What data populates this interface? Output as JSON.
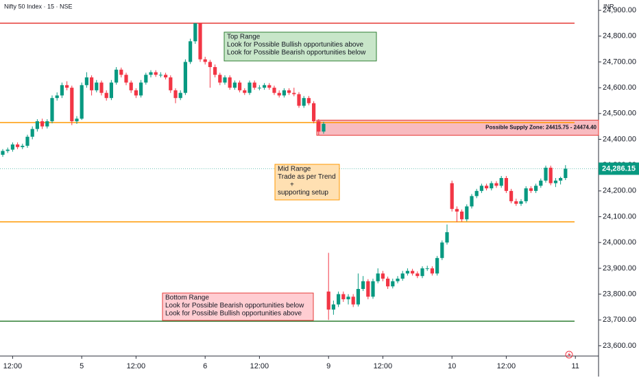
{
  "chart_data": {
    "type": "candlestick",
    "title": "Nifty 50 Index · 15 · NSE",
    "currency": "INR",
    "up_color": "#089981",
    "down_color": "#f23645",
    "ylim": [
      23560,
      24940
    ],
    "yticks": [
      {
        "value": 23600,
        "label": "23,600.00"
      },
      {
        "value": 23700,
        "label": "23,700.00"
      },
      {
        "value": 23800,
        "label": "23,800.00"
      },
      {
        "value": 23900,
        "label": "23,900.00"
      },
      {
        "value": 24000,
        "label": "24,000.00"
      },
      {
        "value": 24100,
        "label": "24,100.00"
      },
      {
        "value": 24200,
        "label": "24,200.00"
      },
      {
        "value": 24300,
        "label": "24,300.00"
      },
      {
        "value": 24400,
        "label": "24,400.00"
      },
      {
        "value": 24500,
        "label": "24,500.00"
      },
      {
        "value": 24600,
        "label": "24,600.00"
      },
      {
        "value": 24700,
        "label": "24,700.00"
      },
      {
        "value": 24800,
        "label": "24,800.00"
      },
      {
        "value": 24900,
        "label": "24,900.00"
      }
    ],
    "xticks": [
      {
        "value": 2,
        "label": "12:00"
      },
      {
        "value": 16,
        "label": "5"
      },
      {
        "value": 27,
        "label": "12:00"
      },
      {
        "value": 41,
        "label": "6"
      },
      {
        "value": 52,
        "label": "12:00"
      },
      {
        "value": 66,
        "label": "9"
      },
      {
        "value": 77,
        "label": "12:00"
      },
      {
        "value": 91,
        "label": "10"
      },
      {
        "value": 102,
        "label": "12:00"
      },
      {
        "value": 116,
        "label": "11"
      }
    ],
    "ohlc": [
      [
        24340,
        24362,
        24332,
        24355
      ],
      [
        24355,
        24368,
        24347,
        24360
      ],
      [
        24360,
        24388,
        24352,
        24380
      ],
      [
        24380,
        24388,
        24362,
        24370
      ],
      [
        24370,
        24383,
        24362,
        24375
      ],
      [
        24375,
        24418,
        24367,
        24410
      ],
      [
        24410,
        24450,
        24400,
        24440
      ],
      [
        24440,
        24478,
        24430,
        24470
      ],
      [
        24470,
        24480,
        24440,
        24450
      ],
      [
        24450,
        24478,
        24442,
        24470
      ],
      [
        24470,
        24570,
        24462,
        24560
      ],
      [
        24560,
        24582,
        24550,
        24570
      ],
      [
        24570,
        24620,
        24560,
        24610
      ],
      [
        24610,
        24625,
        24590,
        24600
      ],
      [
        24600,
        24608,
        24455,
        24470
      ],
      [
        24470,
        24490,
        24460,
        24480
      ],
      [
        24480,
        24620,
        24475,
        24610
      ],
      [
        24610,
        24660,
        24600,
        24640
      ],
      [
        24640,
        24648,
        24570,
        24590
      ],
      [
        24590,
        24630,
        24582,
        24620
      ],
      [
        24620,
        24628,
        24570,
        24580
      ],
      [
        24580,
        24590,
        24550,
        24560
      ],
      [
        24560,
        24630,
        24552,
        24620
      ],
      [
        24620,
        24680,
        24612,
        24670
      ],
      [
        24670,
        24678,
        24640,
        24650
      ],
      [
        24650,
        24658,
        24610,
        24620
      ],
      [
        24620,
        24628,
        24580,
        24590
      ],
      [
        24590,
        24598,
        24560,
        24570
      ],
      [
        24570,
        24630,
        24562,
        24620
      ],
      [
        24620,
        24658,
        24612,
        24650
      ],
      [
        24650,
        24668,
        24640,
        24660
      ],
      [
        24660,
        24668,
        24642,
        24650
      ],
      [
        24650,
        24660,
        24640,
        24650
      ],
      [
        24650,
        24658,
        24632,
        24640
      ],
      [
        24640,
        24648,
        24580,
        24590
      ],
      [
        24590,
        24598,
        24540,
        24560
      ],
      [
        24560,
        24590,
        24552,
        24580
      ],
      [
        24580,
        24710,
        24572,
        24700
      ],
      [
        24700,
        24790,
        24692,
        24780
      ],
      [
        24780,
        24850,
        24770,
        24850
      ],
      [
        24850,
        24850,
        24700,
        24710
      ],
      [
        24710,
        24720,
        24690,
        24700
      ],
      [
        24700,
        24708,
        24600,
        24680
      ],
      [
        24680,
        24690,
        24640,
        24650
      ],
      [
        24650,
        24658,
        24610,
        24620
      ],
      [
        24620,
        24648,
        24612,
        24640
      ],
      [
        24640,
        24648,
        24592,
        24600
      ],
      [
        24600,
        24628,
        24592,
        24620
      ],
      [
        24620,
        24628,
        24582,
        24590
      ],
      [
        24590,
        24598,
        24572,
        24580
      ],
      [
        24580,
        24628,
        24572,
        24620
      ],
      [
        24620,
        24628,
        24592,
        24600
      ],
      [
        24600,
        24610,
        24590,
        24600
      ],
      [
        24600,
        24618,
        24592,
        24610
      ],
      [
        24610,
        24618,
        24592,
        24600
      ],
      [
        24600,
        24608,
        24572,
        24580
      ],
      [
        24580,
        24590,
        24562,
        24570
      ],
      [
        24570,
        24598,
        24562,
        24590
      ],
      [
        24590,
        24598,
        24572,
        24580
      ],
      [
        24580,
        24600,
        24567,
        24575
      ],
      [
        24575,
        24583,
        24522,
        24530
      ],
      [
        24530,
        24568,
        24522,
        24560
      ],
      [
        24560,
        24568,
        24532,
        24540
      ],
      [
        24540,
        24548,
        24462,
        24470
      ],
      [
        24470,
        24478,
        24415,
        24430
      ],
      [
        24430,
        24468,
        24422,
        24460
      ],
      [
        23810,
        23960,
        23700,
        23740
      ],
      [
        23740,
        23775,
        23720,
        23760
      ],
      [
        23760,
        23810,
        23750,
        23800
      ],
      [
        23800,
        23810,
        23770,
        23780
      ],
      [
        23780,
        23800,
        23760,
        23790
      ],
      [
        23790,
        23800,
        23750,
        23760
      ],
      [
        23760,
        23880,
        23752,
        23820
      ],
      [
        23820,
        23870,
        23812,
        23850
      ],
      [
        23850,
        23858,
        23780,
        23790
      ],
      [
        23790,
        23860,
        23782,
        23850
      ],
      [
        23850,
        23900,
        23842,
        23880
      ],
      [
        23880,
        23890,
        23850,
        23860
      ],
      [
        23860,
        23868,
        23820,
        23830
      ],
      [
        23830,
        23860,
        23822,
        23850
      ],
      [
        23850,
        23870,
        23842,
        23860
      ],
      [
        23860,
        23890,
        23852,
        23880
      ],
      [
        23880,
        23900,
        23872,
        23890
      ],
      [
        23890,
        23898,
        23872,
        23880
      ],
      [
        23880,
        23888,
        23862,
        23870
      ],
      [
        23870,
        23908,
        23862,
        23900
      ],
      [
        23900,
        23910,
        23890,
        23900
      ],
      [
        23900,
        23908,
        23872,
        23880
      ],
      [
        23880,
        23948,
        23872,
        23940
      ],
      [
        23940,
        24008,
        23932,
        24000
      ],
      [
        24000,
        24070,
        23992,
        24040
      ],
      [
        24230,
        24240,
        24120,
        24130
      ],
      [
        24130,
        24140,
        24080,
        24120
      ],
      [
        24120,
        24128,
        24080,
        24090
      ],
      [
        24090,
        24148,
        24082,
        24140
      ],
      [
        24140,
        24188,
        24132,
        24180
      ],
      [
        24180,
        24208,
        24172,
        24200
      ],
      [
        24200,
        24228,
        24192,
        24220
      ],
      [
        24220,
        24228,
        24202,
        24210
      ],
      [
        24210,
        24238,
        24202,
        24230
      ],
      [
        24230,
        24238,
        24212,
        24220
      ],
      [
        24220,
        24258,
        24212,
        24250
      ],
      [
        24250,
        24258,
        24192,
        24200
      ],
      [
        24200,
        24208,
        24152,
        24160
      ],
      [
        24160,
        24170,
        24142,
        24150
      ],
      [
        24150,
        24168,
        24142,
        24160
      ],
      [
        24160,
        24218,
        24152,
        24210
      ],
      [
        24210,
        24218,
        24192,
        24200
      ],
      [
        24200,
        24228,
        24192,
        24220
      ],
      [
        24220,
        24248,
        24212,
        24240
      ],
      [
        24240,
        24298,
        24232,
        24290
      ],
      [
        24290,
        24298,
        24222,
        24230
      ],
      [
        24230,
        24250,
        24215,
        24240
      ],
      [
        24240,
        24255,
        24225,
        24250
      ],
      [
        24250,
        24300,
        24242,
        24286.15
      ]
    ],
    "levels": [
      {
        "value": 24850,
        "color": "#e53935"
      },
      {
        "value": 24465,
        "color": "#ff9800"
      },
      {
        "value": 24080,
        "color": "#ff9800"
      },
      {
        "value": 23695,
        "color": "#2e7d32"
      }
    ],
    "zone": {
      "low": 24415.75,
      "high": 24474.4,
      "color": "#f8bbc0",
      "border": "#e53935",
      "label": "Possible Supply Zone: 24415.75 - 24474.40"
    },
    "last_price": {
      "value": 24286.15,
      "label": "24,286.15",
      "color": "#089981"
    },
    "annotations": [
      {
        "lines": [
          "Top Range",
          "Look for Possible Bullish opportunities above",
          "Look for Possible Bearish opportunities below"
        ],
        "fill": "#c8e6c9",
        "border": "#2e7d32"
      },
      {
        "lines": [
          "Mid Range",
          "Trade as per Trend",
          "+",
          "supporting setup"
        ],
        "fill": "#ffe0b2",
        "border": "#ff9800"
      },
      {
        "lines": [
          "Bottom Range",
          "Look for Possible Bearish opportunities below",
          "Look for Possible Bullish opportunities above"
        ],
        "fill": "#ffcdd2",
        "border": "#e53935"
      }
    ]
  }
}
